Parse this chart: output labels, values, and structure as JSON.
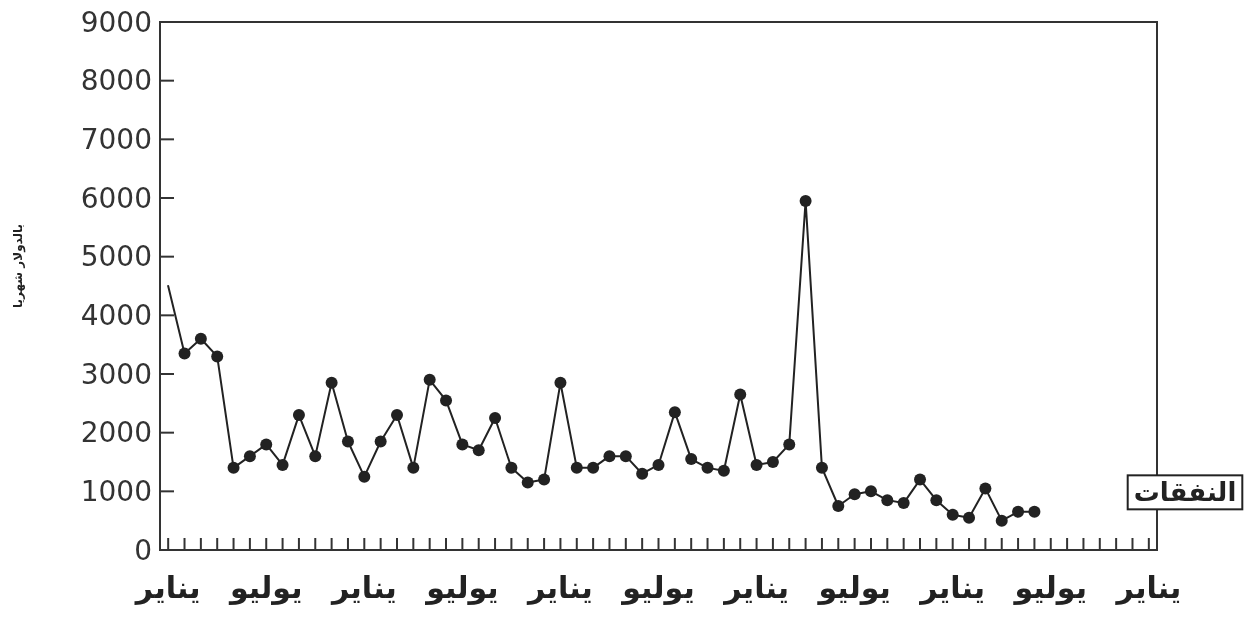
{
  "chart_data": {
    "type": "line",
    "ylabel": "بالدولار شهريا",
    "legend": "right",
    "marker": "circle",
    "line_style": "solid",
    "grid": false,
    "categories": [
      "يناير",
      null,
      null,
      null,
      null,
      null,
      "يوليو",
      null,
      null,
      null,
      null,
      null,
      "يناير",
      null,
      null,
      null,
      null,
      null,
      "يوليو",
      null,
      null,
      null,
      null,
      null,
      "يناير",
      null,
      null,
      null,
      null,
      null,
      "يوليو",
      null,
      null,
      null,
      null,
      null,
      "يناير",
      null,
      null,
      null,
      null,
      null,
      "يوليو",
      null,
      null,
      null,
      null,
      null,
      "يناير",
      null,
      null,
      null,
      null,
      null,
      "يوليو",
      null,
      null,
      null,
      null,
      null,
      "يناير"
    ],
    "series": [
      {
        "name": "النفقات",
        "color": "#222222",
        "values": [
          4500,
          3350,
          3600,
          3300,
          1400,
          1600,
          1800,
          1450,
          2300,
          1600,
          2850,
          1850,
          1250,
          1850,
          2300,
          1400,
          2900,
          2550,
          1800,
          1700,
          2250,
          1400,
          1150,
          1200,
          2850,
          1400,
          1400,
          1600,
          1600,
          1300,
          1450,
          2350,
          1550,
          1400,
          1350,
          2650,
          1450,
          1500,
          1800,
          5950,
          1400,
          750,
          950,
          1000,
          850,
          800,
          1200,
          850,
          600,
          550,
          1050,
          500,
          650,
          650,
          null,
          null,
          null,
          null,
          null,
          null,
          null
        ]
      }
    ],
    "ylim": [
      0,
      9000
    ],
    "yticks": [
      0,
      1000,
      2000,
      3000,
      4000,
      5000,
      6000,
      7000,
      8000,
      9000
    ]
  }
}
